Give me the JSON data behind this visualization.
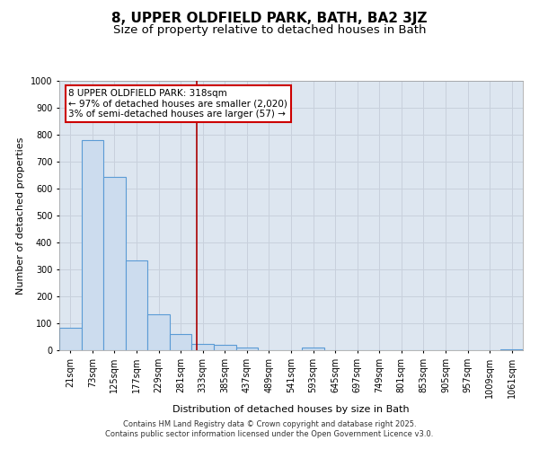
{
  "title1": "8, UPPER OLDFIELD PARK, BATH, BA2 3JZ",
  "title2": "Size of property relative to detached houses in Bath",
  "xlabel": "Distribution of detached houses by size in Bath",
  "ylabel": "Number of detached properties",
  "categories": [
    "21sqm",
    "73sqm",
    "125sqm",
    "177sqm",
    "229sqm",
    "281sqm",
    "333sqm",
    "385sqm",
    "437sqm",
    "489sqm",
    "541sqm",
    "593sqm",
    "645sqm",
    "697sqm",
    "749sqm",
    "801sqm",
    "853sqm",
    "905sqm",
    "957sqm",
    "1009sqm",
    "1061sqm"
  ],
  "values": [
    85,
    780,
    645,
    335,
    135,
    60,
    25,
    20,
    10,
    0,
    0,
    10,
    0,
    0,
    0,
    0,
    0,
    0,
    0,
    0,
    5
  ],
  "bar_color": "#ccdcee",
  "bar_edge_color": "#5b9bd5",
  "vline_color": "#aa0000",
  "annotation_text": "8 UPPER OLDFIELD PARK: 318sqm\n← 97% of detached houses are smaller (2,020)\n3% of semi-detached houses are larger (57) →",
  "annotation_box_color": "#ffffff",
  "annotation_box_edge_color": "#cc0000",
  "ylim": [
    0,
    1000
  ],
  "yticks": [
    0,
    100,
    200,
    300,
    400,
    500,
    600,
    700,
    800,
    900,
    1000
  ],
  "grid_color": "#c8d0dc",
  "background_color": "#dde6f0",
  "footer_line1": "Contains HM Land Registry data © Crown copyright and database right 2025.",
  "footer_line2": "Contains public sector information licensed under the Open Government Licence v3.0.",
  "title1_fontsize": 11,
  "title2_fontsize": 9.5,
  "annot_fontsize": 7.5,
  "tick_fontsize": 7,
  "axis_label_fontsize": 8
}
